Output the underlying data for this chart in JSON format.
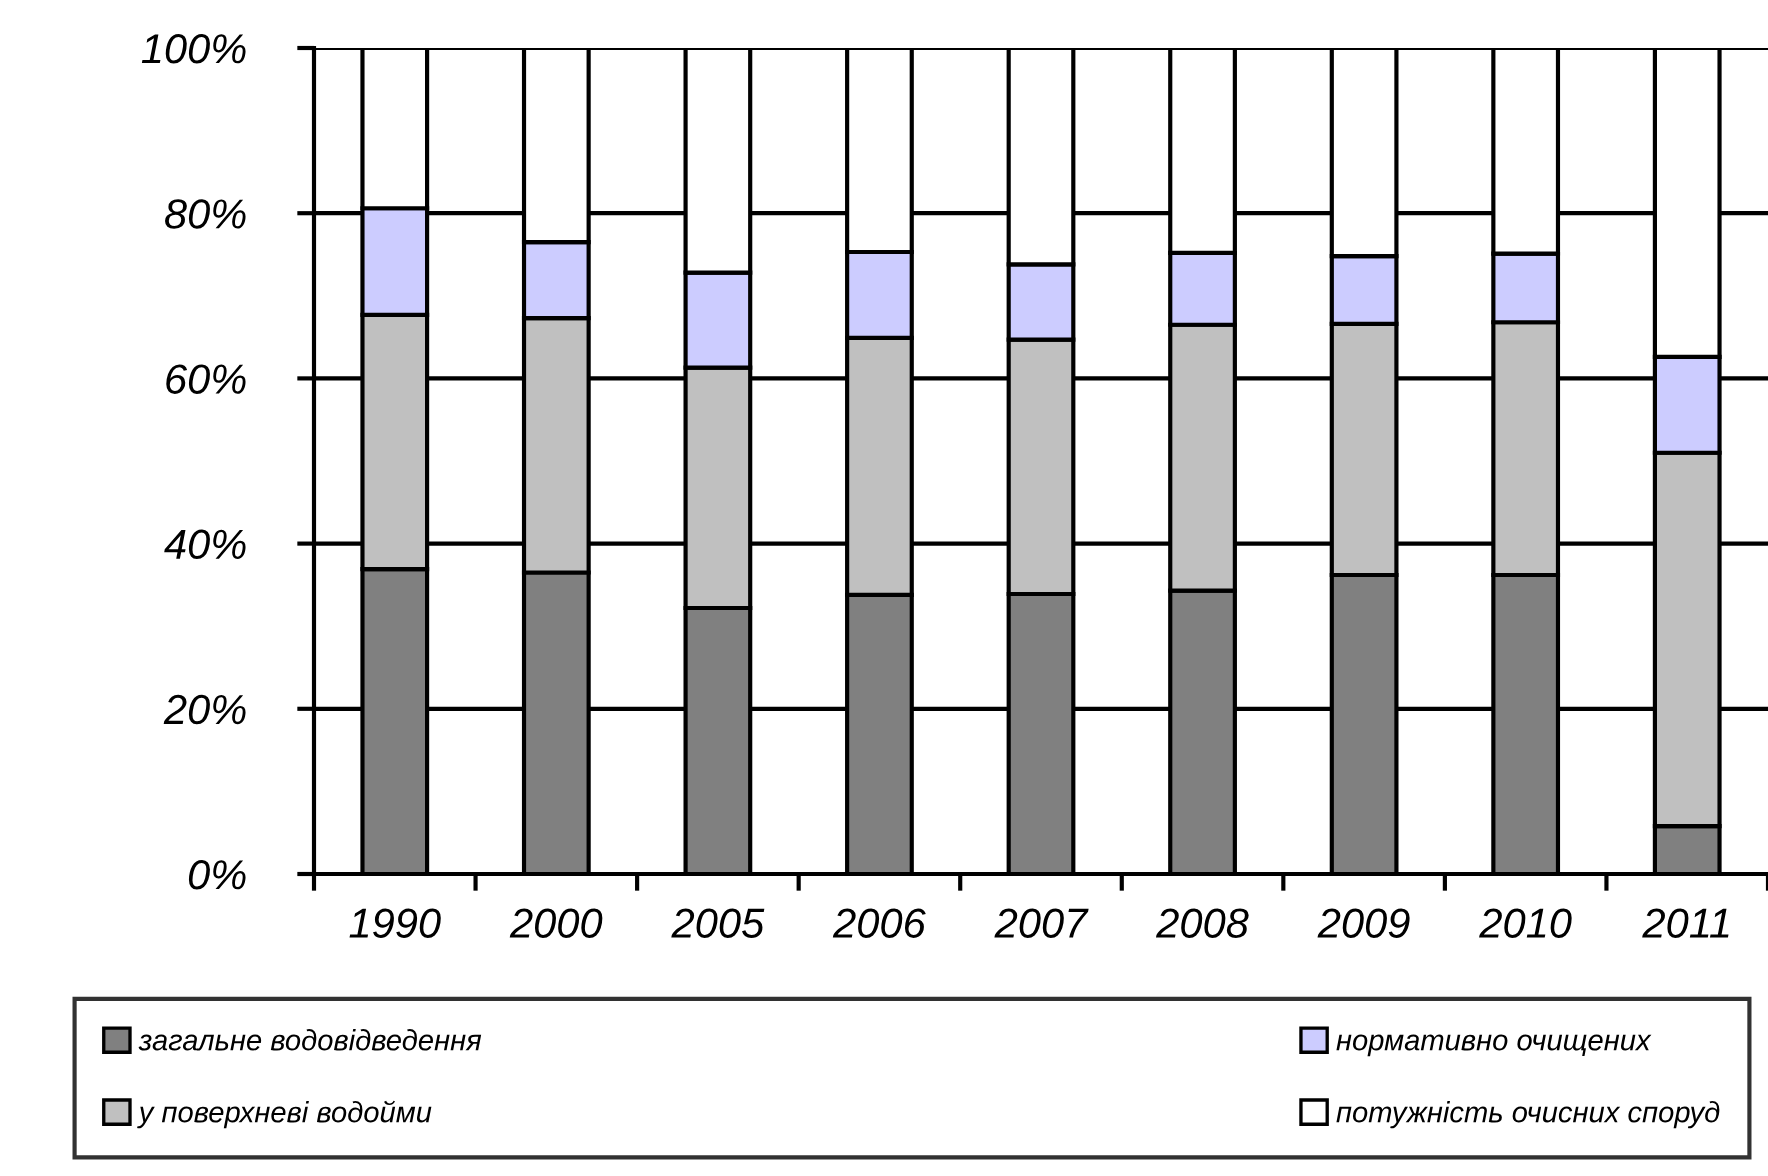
{
  "chart_data": {
    "type": "bar",
    "stacked": true,
    "categories": [
      "1990",
      "2000",
      "2005",
      "2006",
      "2007",
      "2008",
      "2009",
      "2010",
      "2011"
    ],
    "series": [
      {
        "name": "загальне водовідведення",
        "color": "#808080",
        "values": [
          36.9,
          36.5,
          32.2,
          33.8,
          33.9,
          34.3,
          36.2,
          36.2,
          5.8
        ]
      },
      {
        "name": "у поверхневі водойми",
        "color": "#c0c0c0",
        "values": [
          30.8,
          30.8,
          29.1,
          31.1,
          30.8,
          32.2,
          30.4,
          30.6,
          45.2
        ]
      },
      {
        "name": "нормативно очищених",
        "color": "#ccccff",
        "values": [
          12.9,
          9.2,
          11.5,
          10.4,
          9.1,
          8.7,
          8.2,
          8.3,
          11.6
        ]
      },
      {
        "name": "потужність очисних споруд",
        "color": "#ffffff",
        "values": [
          19.4,
          23.5,
          27.2,
          24.7,
          26.2,
          24.8,
          25.2,
          24.9,
          37.4
        ]
      }
    ],
    "ylim": [
      0,
      100
    ],
    "yticks": [
      {
        "value": 0,
        "label": "0%"
      },
      {
        "value": 20,
        "label": "20%"
      },
      {
        "value": 40,
        "label": "40%"
      },
      {
        "value": 60,
        "label": "60%"
      },
      {
        "value": 80,
        "label": "80%"
      },
      {
        "value": 100,
        "label": "100%"
      }
    ],
    "grid": "y",
    "legend": "bottom"
  }
}
